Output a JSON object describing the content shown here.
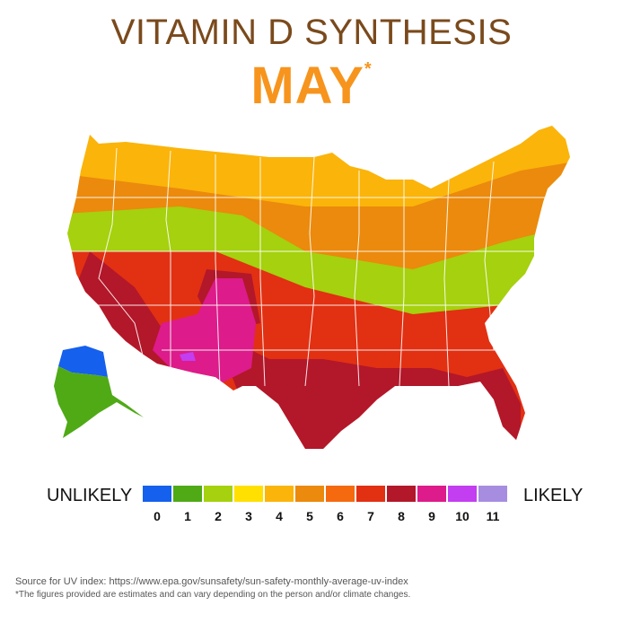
{
  "title": "VITAMIN D SYNTHESIS",
  "month": "MAY",
  "asterisk": "*",
  "legend": {
    "left_label": "UNLIKELY",
    "right_label": "LIKELY",
    "levels": [
      {
        "value": "0",
        "color": "#1560ec"
      },
      {
        "value": "1",
        "color": "#4faa16"
      },
      {
        "value": "2",
        "color": "#a5d10e"
      },
      {
        "value": "3",
        "color": "#ffe000"
      },
      {
        "value": "4",
        "color": "#fbb40a"
      },
      {
        "value": "5",
        "color": "#eb8a0c"
      },
      {
        "value": "6",
        "color": "#f56a0f"
      },
      {
        "value": "7",
        "color": "#e23013"
      },
      {
        "value": "8",
        "color": "#b3172a"
      },
      {
        "value": "9",
        "color": "#dd1b8a"
      },
      {
        "value": "10",
        "color": "#c23ef0"
      },
      {
        "value": "11",
        "color": "#a78de0"
      }
    ]
  },
  "source": "Source for UV index: https://www.epa.gov/sunsafety/sun-safety-monthly-average-uv-index",
  "note": "*The figures provided are estimates and can vary depending on the person and/or climate changes."
}
